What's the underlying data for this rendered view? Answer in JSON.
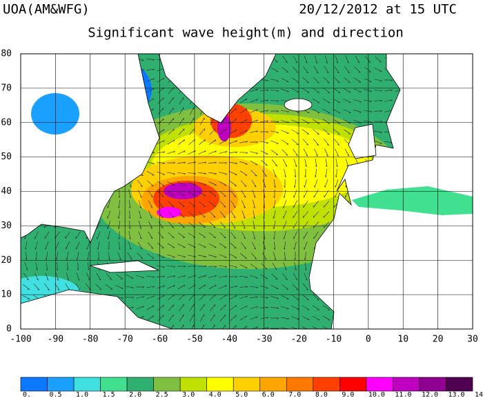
{
  "header": {
    "source": "UOA(AM&WFG)",
    "timestamp": "20/12/2012 at 15 UTC",
    "title": "Significant wave height(m) and direction"
  },
  "map": {
    "xlim": [
      -100,
      30
    ],
    "ylim": [
      0,
      80
    ],
    "xticks": [
      -100,
      -90,
      -80,
      -70,
      -60,
      -50,
      -40,
      -30,
      -20,
      -10,
      0,
      10,
      20,
      30
    ],
    "yticks": [
      0,
      10,
      20,
      30,
      40,
      50,
      60,
      70,
      80
    ],
    "grid": true
  },
  "colorbar": {
    "ticks": [
      {
        "value": 0,
        "label": "0."
      },
      0.5,
      {
        "value": 1,
        "label": "1.0"
      },
      1.5,
      {
        "value": 2,
        "label": "2.0"
      },
      2.5,
      {
        "value": 3,
        "label": "3.0"
      },
      {
        "value": 4,
        "label": "4.0"
      },
      {
        "value": 5,
        "label": "5.0"
      },
      {
        "value": 6,
        "label": "6.0"
      },
      {
        "value": 7,
        "label": "7.0"
      },
      {
        "value": 8,
        "label": "8.0"
      },
      {
        "value": 9,
        "label": "9.0"
      },
      {
        "value": 10,
        "label": "10.0"
      },
      {
        "value": 11,
        "label": "11.0"
      },
      {
        "value": 12,
        "label": "12.0"
      },
      {
        "value": 13,
        "label": "13.0"
      },
      {
        "value": 14,
        "label": "14.0"
      }
    ],
    "colors": [
      "#0a78ff",
      "#1aa0ff",
      "#40e0e0",
      "#40e090",
      "#30b070",
      "#80c040",
      "#c0e000",
      "#ffff00",
      "#ffd000",
      "#ffa500",
      "#ff7800",
      "#ff4000",
      "#ff0000",
      "#ff00ff",
      "#c000c0",
      "#900090",
      "#500050"
    ]
  }
}
